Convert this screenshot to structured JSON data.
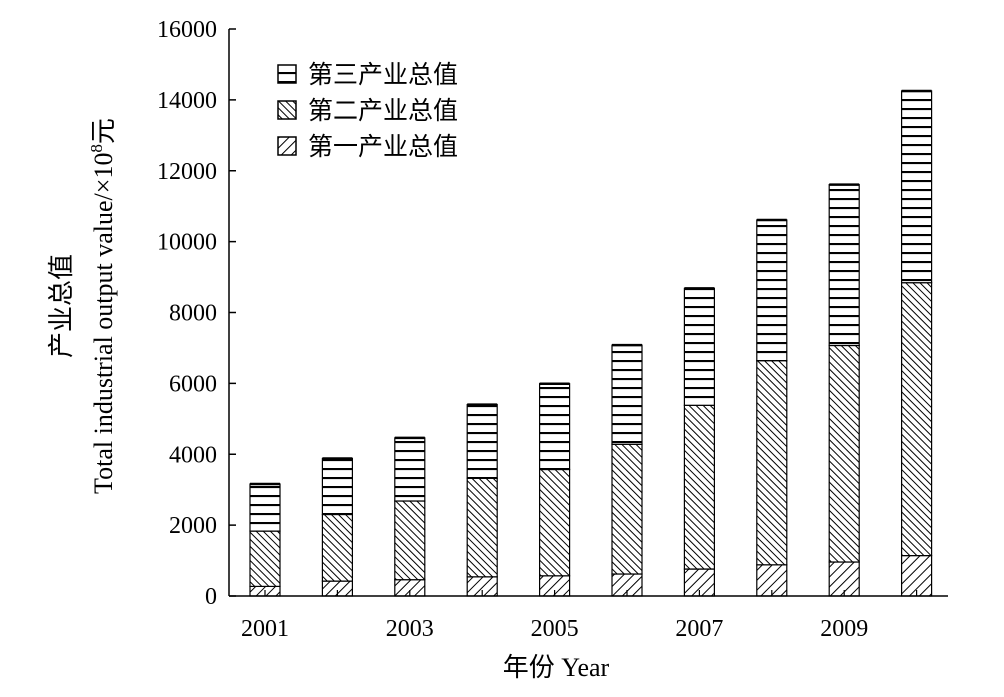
{
  "chart_data": {
    "type": "bar",
    "stacked": true,
    "categories": [
      "2001",
      "2002",
      "2003",
      "2004",
      "2005",
      "2006",
      "2007",
      "2008",
      "2009",
      "2010"
    ],
    "x_tick_labels": [
      "2001",
      "",
      "2003",
      "",
      "2005",
      "",
      "2007",
      "",
      "2009",
      ""
    ],
    "series": [
      {
        "name": "第一产业总值",
        "pattern": "diagonal-hatch",
        "values": [
          270,
          420,
          460,
          540,
          570,
          620,
          760,
          880,
          960,
          1140
        ]
      },
      {
        "name": "第二产业总值",
        "pattern": "dense-cross-hatch",
        "values": [
          1560,
          1880,
          2220,
          2780,
          3000,
          3660,
          4620,
          5760,
          6110,
          7700
        ]
      },
      {
        "name": "第三产业总值",
        "pattern": "horizontal-lines",
        "values": [
          1330,
          1580,
          1780,
          2080,
          2420,
          2800,
          3300,
          3970,
          4540,
          5410
        ]
      }
    ],
    "ylim": [
      0,
      16000
    ],
    "yticks": [
      0,
      2000,
      4000,
      6000,
      8000,
      10000,
      12000,
      14000,
      16000
    ],
    "ylabel_cn": "产业总值",
    "ylabel_en": "Total industrial output value/×10",
    "ylabel_exp": "8",
    "ylabel_unit": "元",
    "xlabel": "年份 Year",
    "legend_position": "top-left",
    "grid": false
  }
}
